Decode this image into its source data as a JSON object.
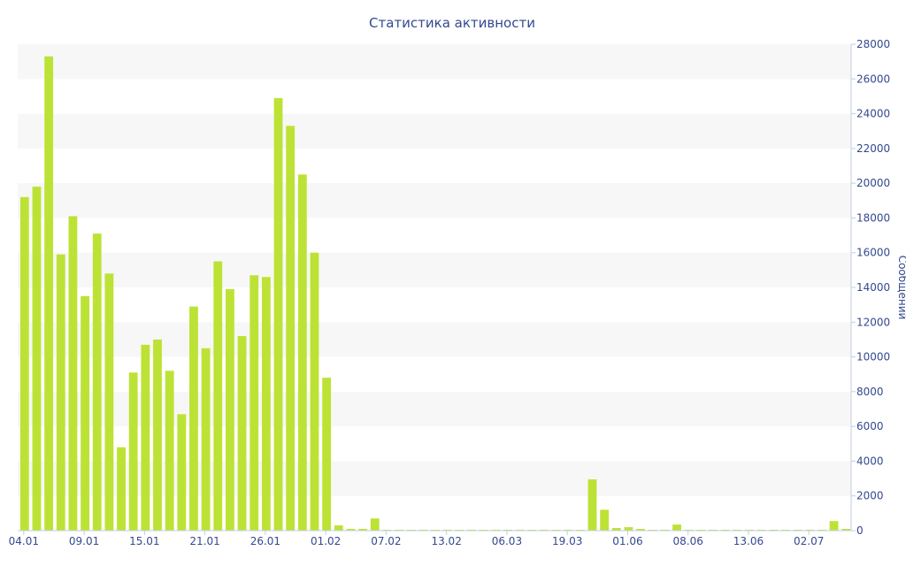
{
  "chart_data": {
    "type": "bar",
    "title": "Статистика активности",
    "xlabel": "",
    "ylabel": "Сообщений",
    "ylim": [
      0,
      28000
    ],
    "y_ticks": [
      0,
      2000,
      4000,
      6000,
      8000,
      10000,
      12000,
      14000,
      16000,
      18000,
      20000,
      22000,
      24000,
      26000,
      28000
    ],
    "x_tick_labels": [
      "04.01",
      "09.01",
      "15.01",
      "21.01",
      "26.01",
      "01.02",
      "07.02",
      "13.02",
      "06.03",
      "19.03",
      "01.06",
      "08.06",
      "13.06",
      "02.07"
    ],
    "x_tick_positions": [
      0,
      5,
      10,
      15,
      20,
      25,
      30,
      35,
      40,
      45,
      50,
      55,
      60,
      65
    ],
    "y_axis_side": "right",
    "grid": "alternating horizontal bands",
    "bar_color": "#bde236",
    "band_color": "#f7f7f7",
    "text_color": "#33498f",
    "values": [
      19200,
      19800,
      27300,
      15900,
      18100,
      13500,
      17100,
      14800,
      4800,
      9100,
      10700,
      11000,
      9200,
      6700,
      12900,
      10500,
      15500,
      13900,
      11200,
      14700,
      14600,
      24900,
      23300,
      20500,
      16000,
      8800,
      300,
      100,
      100,
      700,
      50,
      50,
      50,
      50,
      50,
      50,
      50,
      50,
      50,
      50,
      50,
      50,
      50,
      50,
      50,
      50,
      50,
      2950,
      1200,
      150,
      200,
      100,
      50,
      50,
      350,
      50,
      50,
      50,
      50,
      50,
      50,
      50,
      50,
      50,
      50,
      50,
      50,
      550,
      100
    ]
  }
}
